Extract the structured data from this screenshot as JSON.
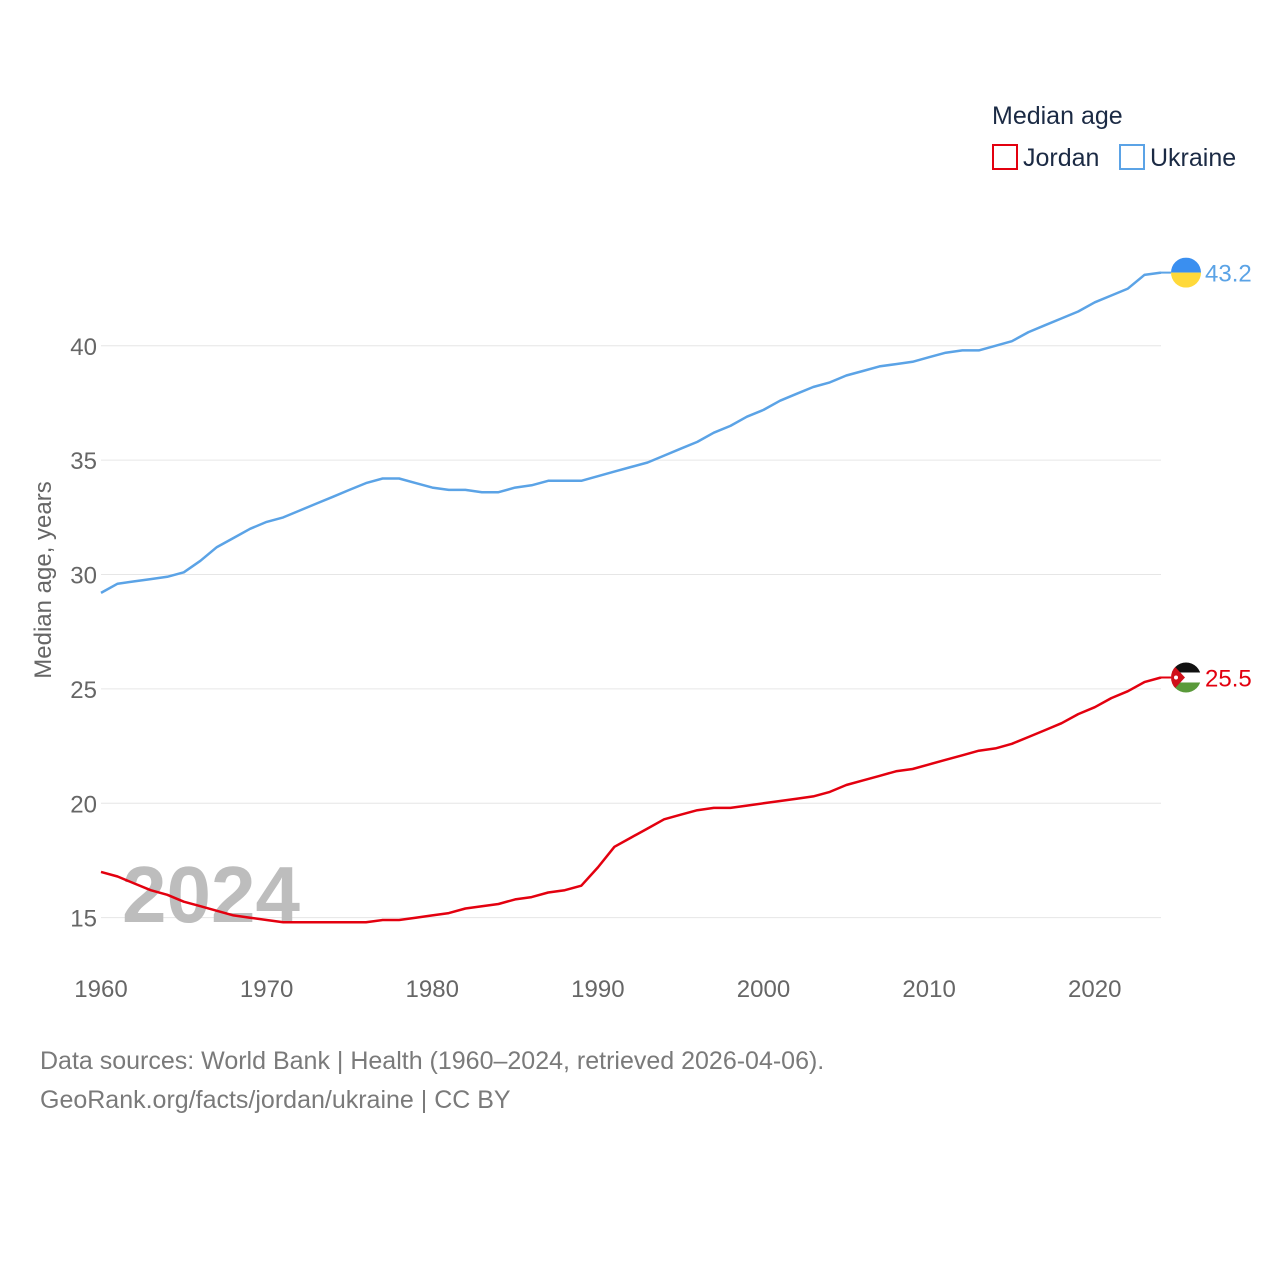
{
  "chart_data": {
    "type": "line",
    "title": "",
    "legend_title": "Median age",
    "legend_position": "top-right",
    "xlabel": "",
    "ylabel": "Median age, years",
    "xlim": [
      1960,
      2024
    ],
    "ylim": [
      12.8,
      45.5
    ],
    "x_ticks": [
      1960,
      1970,
      1980,
      1990,
      2000,
      2010,
      2020
    ],
    "y_ticks": [
      15,
      20,
      25,
      30,
      35,
      40
    ],
    "grid": true,
    "year_label": "2024",
    "x": [
      1960,
      1961,
      1962,
      1963,
      1964,
      1965,
      1966,
      1967,
      1968,
      1969,
      1970,
      1971,
      1972,
      1973,
      1974,
      1975,
      1976,
      1977,
      1978,
      1979,
      1980,
      1981,
      1982,
      1983,
      1984,
      1985,
      1986,
      1987,
      1988,
      1989,
      1990,
      1991,
      1992,
      1993,
      1994,
      1995,
      1996,
      1997,
      1998,
      1999,
      2000,
      2001,
      2002,
      2003,
      2004,
      2005,
      2006,
      2007,
      2008,
      2009,
      2010,
      2011,
      2012,
      2013,
      2014,
      2015,
      2016,
      2017,
      2018,
      2019,
      2020,
      2021,
      2022,
      2023,
      2024
    ],
    "series": [
      {
        "name": "Jordan",
        "color": "#e3000f",
        "end_label": "25.5",
        "flag": "jordan-flag",
        "values": [
          17.0,
          16.8,
          16.5,
          16.2,
          16.0,
          15.7,
          15.5,
          15.3,
          15.1,
          15.0,
          14.9,
          14.8,
          14.8,
          14.8,
          14.8,
          14.8,
          14.8,
          14.9,
          14.9,
          15.0,
          15.1,
          15.2,
          15.4,
          15.5,
          15.6,
          15.8,
          15.9,
          16.1,
          16.2,
          16.4,
          17.2,
          18.1,
          18.5,
          18.9,
          19.3,
          19.5,
          19.7,
          19.8,
          19.8,
          19.9,
          20.0,
          20.1,
          20.2,
          20.3,
          20.5,
          20.8,
          21.0,
          21.2,
          21.4,
          21.5,
          21.7,
          21.9,
          22.1,
          22.3,
          22.4,
          22.6,
          22.9,
          23.2,
          23.5,
          23.9,
          24.2,
          24.6,
          24.9,
          25.3,
          25.5
        ]
      },
      {
        "name": "Ukraine",
        "color": "#5ba3e6",
        "end_label": "43.2",
        "flag": "ukraine-flag",
        "values": [
          29.2,
          29.6,
          29.7,
          29.8,
          29.9,
          30.1,
          30.6,
          31.2,
          31.6,
          32.0,
          32.3,
          32.5,
          32.8,
          33.1,
          33.4,
          33.7,
          34.0,
          34.2,
          34.2,
          34.0,
          33.8,
          33.7,
          33.7,
          33.6,
          33.6,
          33.8,
          33.9,
          34.1,
          34.1,
          34.1,
          34.3,
          34.5,
          34.7,
          34.9,
          35.2,
          35.5,
          35.8,
          36.2,
          36.5,
          36.9,
          37.2,
          37.6,
          37.9,
          38.2,
          38.4,
          38.7,
          38.9,
          39.1,
          39.2,
          39.3,
          39.5,
          39.7,
          39.8,
          39.8,
          40.0,
          40.2,
          40.6,
          40.9,
          41.2,
          41.5,
          41.9,
          42.2,
          42.5,
          43.1,
          43.2
        ]
      }
    ]
  },
  "source": {
    "line1": "Data sources: World Bank | Health (1960–2024, retrieved 2026-04-06).",
    "line2": "GeoRank.org/facts/jordan/ukraine | CC BY"
  }
}
